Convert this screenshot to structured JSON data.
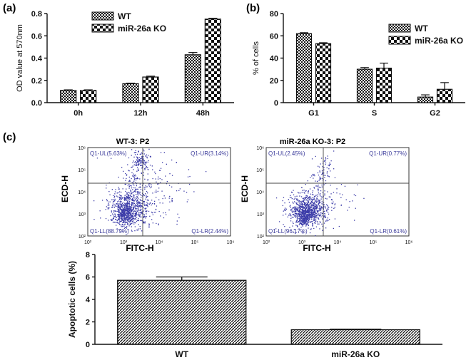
{
  "colors": {
    "axis": "#111111",
    "flow_dots": "#3b3ba8",
    "gate_line": "#444444",
    "quad_text": "#3a3a9a"
  },
  "chart_data": [
    {
      "type": "bar",
      "panel_label": "(a)",
      "categories": [
        "0h",
        "12h",
        "48h"
      ],
      "series": [
        {
          "name": "WT",
          "pattern": "checker-fine",
          "values": [
            0.11,
            0.17,
            0.43
          ],
          "errors": [
            0.005,
            0.005,
            0.02
          ]
        },
        {
          "name": "miR-26a KO",
          "pattern": "checker-coarse",
          "values": [
            0.11,
            0.23,
            0.75
          ],
          "errors": [
            0.005,
            0.008,
            0.008
          ]
        }
      ],
      "ylabel": "OD value at 570nm",
      "xlabel": "",
      "ylim": [
        0,
        0.8
      ],
      "yticks": [
        "0.0",
        "0.2",
        "0.4",
        "0.6",
        "0.8"
      ],
      "legend": "top-left"
    },
    {
      "type": "bar",
      "panel_label": "(b)",
      "categories": [
        "G1",
        "S",
        "G2"
      ],
      "series": [
        {
          "name": "WT",
          "pattern": "checker-fine",
          "values": [
            62,
            30,
            5
          ],
          "errors": [
            0.8,
            1.5,
            2
          ]
        },
        {
          "name": "miR-26a KO",
          "pattern": "checker-coarse",
          "values": [
            53,
            31,
            12
          ],
          "errors": [
            0.8,
            4.5,
            6
          ]
        }
      ],
      "ylabel": "% of cells",
      "xlabel": "",
      "ylim": [
        0,
        80
      ],
      "yticks": [
        "0",
        "20",
        "40",
        "60",
        "80"
      ],
      "legend": "top-right"
    },
    {
      "type": "scatter",
      "panel_label": "(c)",
      "title": "WT-3: P2",
      "xlabel": "FITC-H",
      "ylabel": "ECD-H",
      "xticks": [
        "10²",
        "10³",
        "10⁴",
        "10⁵",
        "10⁶"
      ],
      "yticks": [
        "10²",
        "10³",
        "10⁴",
        "10⁵",
        "10⁶"
      ],
      "quadrants": {
        "UL": "Q1-UL(5.63%)",
        "UR": "Q1-UR(3.14%)",
        "LL": "Q1-LL(88.79%)",
        "LR": "Q1-LR(2.44%)"
      }
    },
    {
      "type": "scatter",
      "title": "miR-26a KO-3: P2",
      "xlabel": "FITC-H",
      "ylabel": "ECD-H",
      "xticks": [
        "10²",
        "10³",
        "10⁴",
        "10⁵",
        "10⁶"
      ],
      "yticks": [
        "10²",
        "10³",
        "10⁴",
        "10⁵",
        "10⁶"
      ],
      "quadrants": {
        "UL": "Q1-UL(2.45%)",
        "UR": "Q1-UR(0.77%)",
        "LL": "Q1-LL(96.17%)",
        "LR": "Q1-LR(0.61%)"
      }
    },
    {
      "type": "bar",
      "categories": [
        "WT",
        "miR-26a KO"
      ],
      "values": [
        5.7,
        1.3
      ],
      "errors": [
        0.3,
        0.05
      ],
      "ylabel": "Apoptotic cells (%)",
      "xlabel": "",
      "ylim": [
        0,
        8
      ],
      "yticks": [
        "0",
        "2",
        "4",
        "6",
        "8"
      ]
    }
  ]
}
